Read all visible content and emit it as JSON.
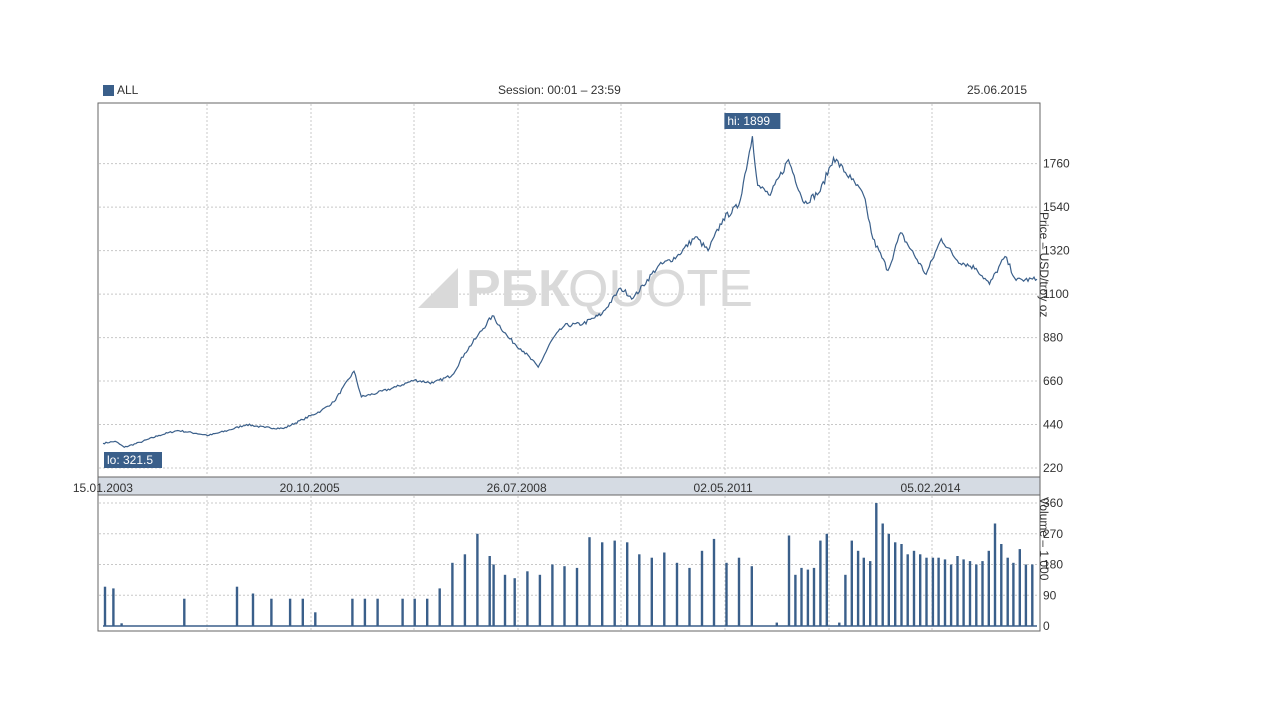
{
  "header": {
    "legend_label": "ALL",
    "session": "Session: 00:01 – 23:59",
    "date": "25.06.2015"
  },
  "watermark": {
    "bold": "РБК",
    "light": "QUOTE"
  },
  "colors": {
    "series": "#3a5f8a",
    "grid": "#c8c8c8",
    "date_strip": "#d5dbe3",
    "flag_bg": "#3a5f8a"
  },
  "chart_data": [
    {
      "type": "line",
      "ylabel": "Price – USD/troy oz",
      "ylim": [
        220,
        1900
      ],
      "yticks": [
        220,
        440,
        660,
        880,
        1100,
        1320,
        1540,
        1760
      ],
      "x_tick_labels": [
        "15.01.2003",
        "20.10.2005",
        "26.07.2008",
        "02.05.2011",
        "05.02.2014"
      ],
      "x_tick_dates": [
        "2003-01-15",
        "2005-10-20",
        "2008-07-26",
        "2011-05-02",
        "2014-02-05"
      ],
      "x_range": [
        "2003-01-01",
        "2015-06-25"
      ],
      "hi_label": "hi: 1899",
      "lo_label": "lo: 321.5",
      "hi": 1899,
      "lo": 321.5,
      "grid": true,
      "series": [
        {
          "x": [
            "2003-01-01",
            "2003-03-01",
            "2003-04-15",
            "2003-07-01",
            "2003-10-01",
            "2004-01-01",
            "2004-04-01",
            "2004-06-01",
            "2004-09-01",
            "2004-12-01",
            "2005-03-01",
            "2005-06-01",
            "2005-09-01",
            "2005-12-01",
            "2006-02-01",
            "2006-05-10",
            "2006-06-15",
            "2006-09-01",
            "2006-12-01",
            "2007-03-01",
            "2007-06-01",
            "2007-09-01",
            "2007-11-01",
            "2008-01-01",
            "2008-03-15",
            "2008-06-01",
            "2008-08-15",
            "2008-10-25",
            "2009-01-01",
            "2009-03-01",
            "2009-06-01",
            "2009-09-01",
            "2009-12-01",
            "2010-02-01",
            "2010-06-01",
            "2010-09-01",
            "2010-12-01",
            "2011-02-01",
            "2011-04-15",
            "2011-07-01",
            "2011-09-05",
            "2011-10-01",
            "2011-12-01",
            "2012-02-28",
            "2012-05-15",
            "2012-08-01",
            "2012-10-05",
            "2013-01-01",
            "2013-03-01",
            "2013-04-15",
            "2013-06-28",
            "2013-08-28",
            "2013-12-31",
            "2014-03-15",
            "2014-06-01",
            "2014-09-01",
            "2014-11-05",
            "2015-01-20",
            "2015-03-15",
            "2015-06-25"
          ],
          "y": [
            345,
            355,
            325,
            350,
            385,
            410,
            395,
            385,
            410,
            440,
            425,
            420,
            465,
            510,
            555,
            710,
            580,
            600,
            630,
            665,
            650,
            690,
            800,
            885,
            990,
            880,
            810,
            730,
            870,
            940,
            950,
            1000,
            1130,
            1080,
            1240,
            1290,
            1390,
            1320,
            1480,
            1550,
            1899,
            1650,
            1600,
            1780,
            1560,
            1620,
            1790,
            1680,
            1600,
            1380,
            1220,
            1410,
            1200,
            1380,
            1270,
            1230,
            1150,
            1290,
            1170,
            1175
          ]
        }
      ]
    },
    {
      "type": "bar",
      "ylabel": "Volume – 1 000",
      "ylim": [
        0,
        360
      ],
      "yticks": [
        0,
        90,
        180,
        270,
        360
      ],
      "grid": true,
      "x": [
        "2003-01-10",
        "2003-02-20",
        "2003-04-01",
        "2004-02-01",
        "2004-10-15",
        "2005-01-01",
        "2005-04-01",
        "2005-07-01",
        "2005-09-01",
        "2005-11-01",
        "2006-05-01",
        "2006-07-01",
        "2006-09-01",
        "2007-01-01",
        "2007-03-01",
        "2007-05-01",
        "2007-07-01",
        "2007-09-01",
        "2007-11-01",
        "2008-01-01",
        "2008-03-01",
        "2008-03-20",
        "2008-05-15",
        "2008-07-01",
        "2008-09-01",
        "2008-11-01",
        "2009-01-01",
        "2009-03-01",
        "2009-05-01",
        "2009-07-01",
        "2009-09-01",
        "2009-11-01",
        "2010-01-01",
        "2010-03-01",
        "2010-05-01",
        "2010-07-01",
        "2010-09-01",
        "2010-11-01",
        "2011-01-01",
        "2011-03-01",
        "2011-05-01",
        "2011-07-01",
        "2011-09-01",
        "2011-11-01",
        "2012-01-01",
        "2012-03-01",
        "2012-04-01",
        "2012-05-01",
        "2012-06-01",
        "2012-07-01",
        "2012-08-01",
        "2012-09-01",
        "2012-10-01",
        "2012-11-01",
        "2012-12-01",
        "2013-01-01",
        "2013-02-01",
        "2013-03-01",
        "2013-04-01",
        "2013-05-01",
        "2013-06-01",
        "2013-07-01",
        "2013-08-01",
        "2013-09-01",
        "2013-10-01",
        "2013-11-01",
        "2013-12-01",
        "2014-01-01",
        "2014-02-01",
        "2014-03-01",
        "2014-04-01",
        "2014-05-01",
        "2014-06-01",
        "2014-07-01",
        "2014-08-01",
        "2014-09-01",
        "2014-10-01",
        "2014-11-01",
        "2014-12-01",
        "2015-01-01",
        "2015-02-01",
        "2015-03-01",
        "2015-04-01",
        "2015-05-01",
        "2015-06-01"
      ],
      "values": [
        115,
        110,
        8,
        80,
        115,
        95,
        80,
        80,
        80,
        40,
        80,
        80,
        80,
        80,
        80,
        80,
        110,
        185,
        210,
        270,
        205,
        180,
        150,
        140,
        160,
        150,
        180,
        175,
        170,
        260,
        245,
        250,
        245,
        210,
        200,
        215,
        185,
        170,
        220,
        255,
        185,
        200,
        175,
        0,
        10,
        265,
        150,
        170,
        165,
        170,
        250,
        270,
        0,
        10,
        150,
        250,
        220,
        200,
        190,
        360,
        300,
        270,
        245,
        240,
        210,
        220,
        210,
        200,
        200,
        200,
        195,
        180,
        205,
        195,
        190,
        180,
        190,
        220,
        300,
        240,
        200,
        185,
        225,
        180,
        180
      ]
    }
  ]
}
